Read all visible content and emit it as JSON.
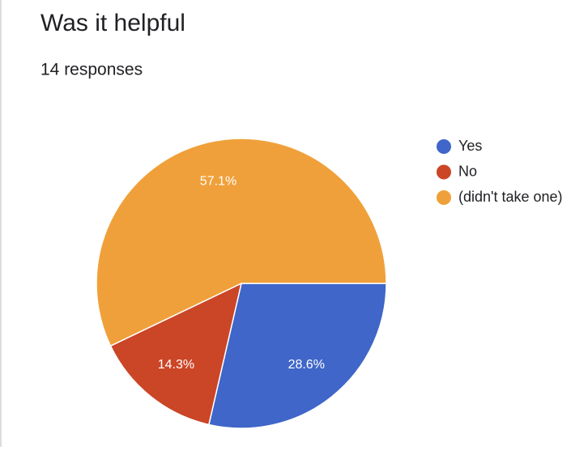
{
  "chart_data": {
    "type": "pie",
    "title": "Was it helpful",
    "subtitle": "14 responses",
    "categories": [
      "Yes",
      "No",
      "(didn't take one)"
    ],
    "values": [
      28.6,
      14.3,
      57.1
    ],
    "value_labels": [
      "28.6%",
      "14.3%",
      "57.1%"
    ],
    "colors": [
      "#3f66c8",
      "#cb4527",
      "#f0a03a"
    ]
  }
}
